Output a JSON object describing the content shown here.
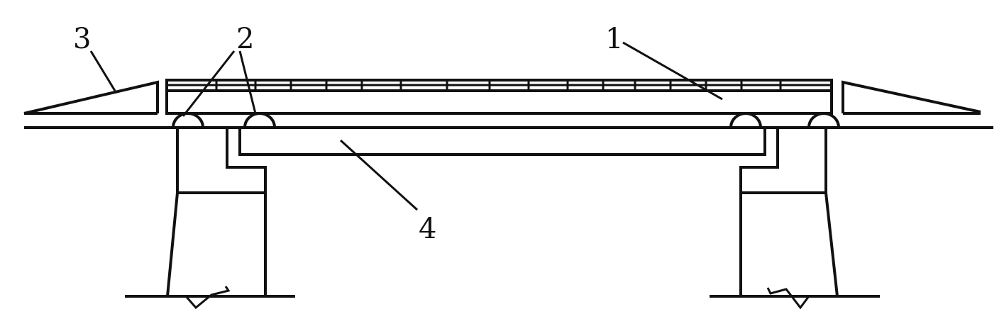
{
  "labels": {
    "l1": "1",
    "l2": "2",
    "l3": "3",
    "l4": "4"
  },
  "line_color": "#111111"
}
